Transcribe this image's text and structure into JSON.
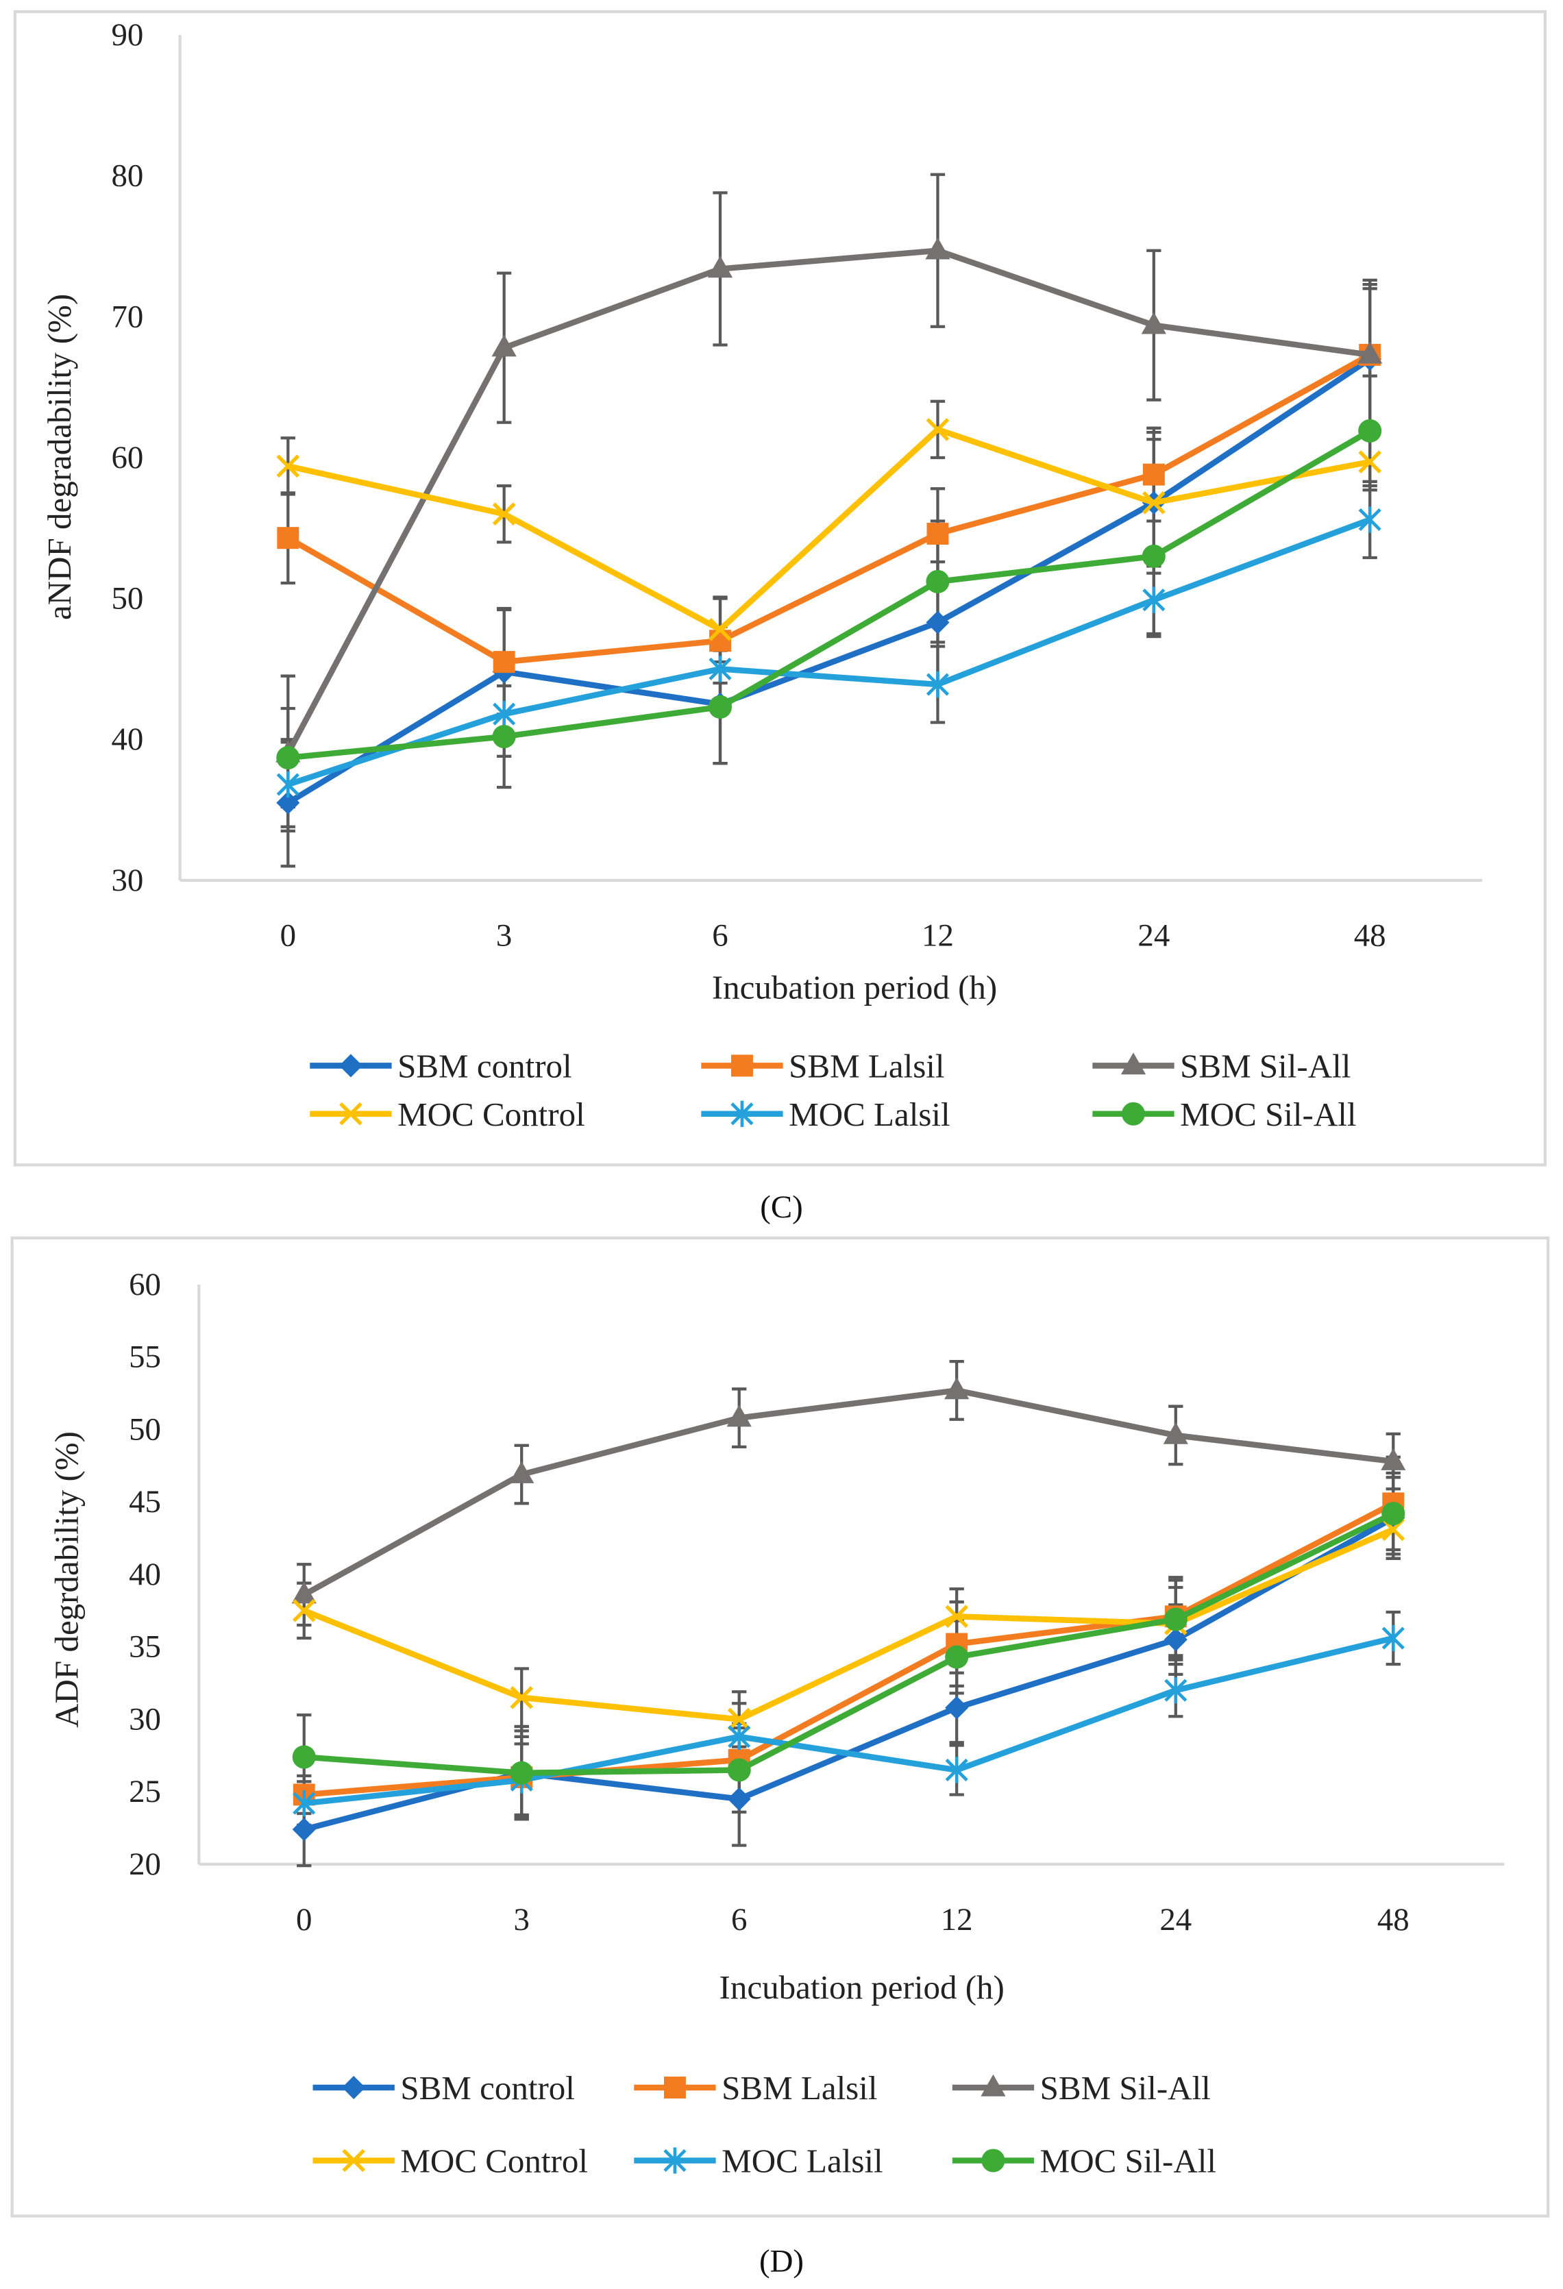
{
  "colors": {
    "SBM control": "#1f6fc5",
    "SBM Lalsil": "#f47c20",
    "SBM Sil-All": "#767171",
    "MOC Control": "#ffc000",
    "MOC Lalsil": "#24a0da",
    "MOC Sil-All": "#3fab37",
    "error_bar": "#595959"
  },
  "markers": {
    "SBM control": "diamond",
    "SBM Lalsil": "square",
    "SBM Sil-All": "triangle",
    "MOC Control": "x",
    "MOC Lalsil": "asterisk",
    "MOC Sil-All": "circle"
  },
  "chart_data": [
    {
      "panel": "C",
      "type": "line",
      "xlabel": "Incubation period (h)",
      "ylabel": "aNDF degradability (%)",
      "categories": [
        "0",
        "3",
        "6",
        "12",
        "24",
        "48"
      ],
      "ylim": [
        30,
        90
      ],
      "yticks": [
        30,
        40,
        50,
        60,
        70,
        80,
        90
      ],
      "grid": false,
      "legend": "bottom",
      "error_bars": true,
      "series": [
        {
          "name": "SBM control",
          "values": [
            35.5,
            44.8,
            42.5,
            48.3,
            56.8,
            67.0
          ],
          "errors": [
            4.5,
            4.5,
            4.2,
            4.3,
            5.0,
            5.0
          ]
        },
        {
          "name": "SBM Lalsil",
          "values": [
            54.3,
            45.5,
            47.0,
            54.6,
            58.8,
            67.3
          ],
          "errors": [
            3.2,
            3.7,
            3.0,
            3.2,
            3.3,
            5.0
          ]
        },
        {
          "name": "SBM Sil-All",
          "values": [
            39.0,
            67.8,
            73.4,
            74.7,
            69.4,
            67.3
          ],
          "errors": [
            5.5,
            5.3,
            5.4,
            5.4,
            5.3,
            5.3
          ]
        },
        {
          "name": "MOC Control",
          "values": [
            59.4,
            56.0,
            47.8,
            62.0,
            56.8,
            59.7
          ],
          "errors": [
            2.0,
            2.0,
            2.3,
            2.0,
            4.5,
            2.0
          ]
        },
        {
          "name": "MOC Lalsil",
          "values": [
            36.8,
            41.8,
            45.0,
            43.9,
            49.9,
            55.6
          ],
          "errors": [
            3.0,
            3.0,
            3.0,
            2.7,
            2.6,
            2.7
          ]
        },
        {
          "name": "MOC Sil-All",
          "values": [
            38.7,
            40.2,
            42.3,
            51.2,
            53.0,
            61.9
          ],
          "errors": [
            3.5,
            3.6,
            4.0,
            4.3,
            5.5,
            3.9
          ]
        }
      ],
      "caption": "(C)"
    },
    {
      "panel": "D",
      "type": "line",
      "xlabel": "Incubation period (h)",
      "ylabel": "ADF degrdability (%)",
      "categories": [
        "0",
        "3",
        "6",
        "12",
        "24",
        "48"
      ],
      "ylim": [
        20,
        60
      ],
      "yticks": [
        20,
        25,
        30,
        35,
        40,
        45,
        50,
        55,
        60
      ],
      "grid": false,
      "legend": "bottom",
      "error_bars": true,
      "series": [
        {
          "name": "SBM control",
          "values": [
            22.4,
            26.3,
            24.5,
            30.8,
            35.5,
            43.9
          ],
          "errors": [
            2.5,
            3.2,
            3.2,
            2.4,
            2.4,
            2.8
          ]
        },
        {
          "name": "SBM Lalsil",
          "values": [
            24.8,
            26.0,
            27.2,
            35.2,
            37.1,
            44.9
          ],
          "errors": [
            1.3,
            2.8,
            2.5,
            2.9,
            2.7,
            3.2
          ]
        },
        {
          "name": "SBM Sil-All",
          "values": [
            38.6,
            46.9,
            50.8,
            52.7,
            49.6,
            47.8
          ],
          "errors": [
            2.1,
            2.0,
            2.0,
            2.0,
            2.0,
            1.9
          ]
        },
        {
          "name": "MOC Control",
          "values": [
            37.5,
            31.5,
            30.0,
            37.1,
            36.6,
            43.1
          ],
          "errors": [
            1.9,
            2.0,
            1.9,
            1.9,
            2.5,
            2.0
          ]
        },
        {
          "name": "MOC Lalsil",
          "values": [
            24.2,
            25.8,
            28.8,
            26.5,
            32.0,
            35.6
          ],
          "errors": [
            1.5,
            2.5,
            2.3,
            1.7,
            1.8,
            1.8
          ]
        },
        {
          "name": "MOC Sil-All",
          "values": [
            27.4,
            26.3,
            26.5,
            34.3,
            36.9,
            44.2
          ],
          "errors": [
            2.9,
            2.9,
            2.9,
            2.5,
            2.7,
            2.8
          ]
        }
      ],
      "caption": "(D)"
    }
  ]
}
